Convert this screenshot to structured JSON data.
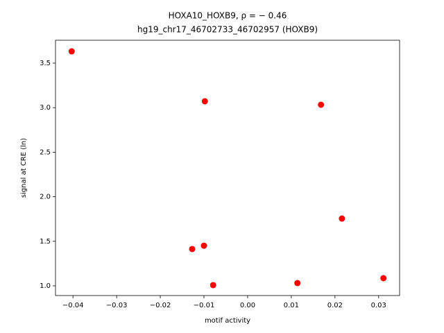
{
  "chart_data": {
    "type": "scatter",
    "title": "HOXA10_HOXB9, ρ = − 0.46",
    "subtitle": "hg19_chr17_46702733_46702957 (HOXB9)",
    "x_label": "motif activity",
    "y_label": "signal at CRE (ln)",
    "color": "#ff0000",
    "x": [
      -0.0403,
      -0.0098,
      0.0168,
      0.0216,
      -0.0127,
      -0.01,
      -0.0079,
      0.0114,
      0.0311
    ],
    "values": [
      3.632,
      3.072,
      3.033,
      1.755,
      1.413,
      1.451,
      1.008,
      1.031,
      1.086
    ],
    "xlim": [
      -0.044,
      0.0348
    ],
    "ylim": [
      0.891,
      3.757
    ],
    "xticks": [
      {
        "value": -0.04,
        "label": "−0.04"
      },
      {
        "value": -0.03,
        "label": "−0.03"
      },
      {
        "value": -0.02,
        "label": "−0.02"
      },
      {
        "value": -0.01,
        "label": "−0.01"
      },
      {
        "value": 0,
        "label": "0.00"
      },
      {
        "value": 0.01,
        "label": "0.01"
      },
      {
        "value": 0.02,
        "label": "0.02"
      },
      {
        "value": 0.03,
        "label": "0.03"
      }
    ],
    "yticks": [
      {
        "value": 1.0,
        "label": "1.0"
      },
      {
        "value": 1.5,
        "label": "1.5"
      },
      {
        "value": 2.0,
        "label": "2.0"
      },
      {
        "value": 2.5,
        "label": "2.5"
      },
      {
        "value": 3.0,
        "label": "3.0"
      },
      {
        "value": 3.5,
        "label": "3.5"
      }
    ],
    "grid": false
  }
}
